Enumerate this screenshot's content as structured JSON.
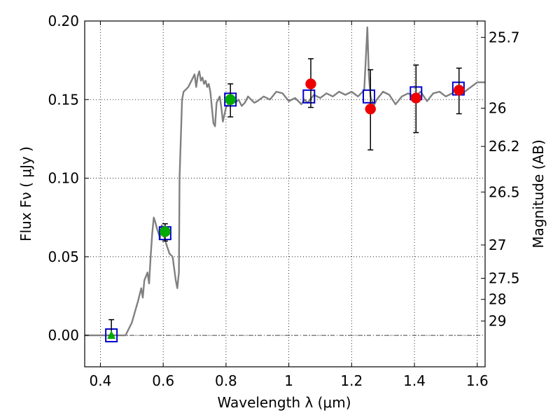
{
  "chart_data": {
    "type": "scatter",
    "title": "",
    "xlabel": "Wavelength  λ (μm)",
    "ylabel": "Flux  Fν  ( μJy )",
    "y2label": "Magnitude (AB)",
    "xlim": [
      0.35,
      1.625
    ],
    "ylim": [
      -0.02,
      0.2
    ],
    "grid": true,
    "x_ticks": [
      0.4,
      0.6,
      0.8,
      1.0,
      1.2,
      1.4,
      1.6
    ],
    "x_tick_labels": [
      "0.4",
      "0.6",
      "0.8",
      "1",
      "1.2",
      "1.4",
      "1.6"
    ],
    "y_ticks": [
      0.0,
      0.05,
      0.1,
      0.15,
      0.2
    ],
    "y_tick_labels": [
      "0.00",
      "0.05",
      "0.10",
      "0.15",
      "0.20"
    ],
    "y2_ticks": [
      {
        "label": "25.7",
        "flux": 0.1896
      },
      {
        "label": "26",
        "flux": 0.1445
      },
      {
        "label": "26.2",
        "flux": 0.1202
      },
      {
        "label": "26.5",
        "flux": 0.0912
      },
      {
        "label": "27",
        "flux": 0.0575
      },
      {
        "label": "27.5",
        "flux": 0.0363
      },
      {
        "label": "28",
        "flux": 0.0229
      },
      {
        "label": "29",
        "flux": 0.0091
      }
    ],
    "series": [
      {
        "kind": "line",
        "color": "#808080",
        "x": [
          0.35,
          0.48,
          0.5,
          0.52,
          0.53,
          0.535,
          0.54,
          0.55,
          0.555,
          0.56,
          0.565,
          0.57,
          0.575,
          0.58,
          0.59,
          0.595,
          0.6,
          0.61,
          0.62,
          0.63,
          0.64,
          0.645,
          0.65,
          0.652,
          0.66,
          0.665,
          0.67,
          0.68,
          0.69,
          0.7,
          0.705,
          0.71,
          0.715,
          0.72,
          0.725,
          0.73,
          0.735,
          0.74,
          0.745,
          0.75,
          0.755,
          0.76,
          0.765,
          0.77,
          0.775,
          0.78,
          0.785,
          0.79,
          0.8,
          0.81,
          0.82,
          0.83,
          0.84,
          0.85,
          0.86,
          0.87,
          0.88,
          0.89,
          0.9,
          0.92,
          0.94,
          0.96,
          0.98,
          1.0,
          1.02,
          1.04,
          1.05,
          1.06,
          1.08,
          1.1,
          1.12,
          1.14,
          1.16,
          1.18,
          1.2,
          1.22,
          1.24,
          1.245,
          1.25,
          1.255,
          1.26,
          1.27,
          1.28,
          1.3,
          1.32,
          1.34,
          1.36,
          1.38,
          1.4,
          1.42,
          1.44,
          1.46,
          1.48,
          1.5,
          1.52,
          1.54,
          1.56,
          1.58,
          1.6,
          1.625
        ],
        "y": [
          0.0,
          0.0,
          0.008,
          0.022,
          0.03,
          0.024,
          0.035,
          0.04,
          0.033,
          0.05,
          0.065,
          0.075,
          0.072,
          0.068,
          0.062,
          0.07,
          0.066,
          0.058,
          0.052,
          0.05,
          0.035,
          0.03,
          0.04,
          0.1,
          0.15,
          0.155,
          0.156,
          0.158,
          0.162,
          0.166,
          0.158,
          0.165,
          0.168,
          0.162,
          0.164,
          0.16,
          0.162,
          0.158,
          0.16,
          0.155,
          0.145,
          0.135,
          0.133,
          0.148,
          0.15,
          0.152,
          0.145,
          0.136,
          0.145,
          0.148,
          0.15,
          0.148,
          0.15,
          0.146,
          0.148,
          0.152,
          0.15,
          0.148,
          0.149,
          0.152,
          0.15,
          0.155,
          0.154,
          0.149,
          0.151,
          0.147,
          0.15,
          0.148,
          0.153,
          0.151,
          0.154,
          0.152,
          0.155,
          0.153,
          0.155,
          0.152,
          0.156,
          0.175,
          0.196,
          0.165,
          0.152,
          0.146,
          0.15,
          0.155,
          0.153,
          0.147,
          0.152,
          0.154,
          0.152,
          0.155,
          0.149,
          0.154,
          0.155,
          0.152,
          0.154,
          0.158,
          0.155,
          0.158,
          0.161,
          0.161
        ]
      },
      {
        "kind": "markers",
        "marker": "open-square",
        "color": "#0000cc",
        "x": [
          0.435,
          0.606,
          0.814,
          1.064,
          1.255,
          1.405,
          1.54
        ],
        "y": [
          0.0,
          0.065,
          0.15,
          0.152,
          0.152,
          0.154,
          0.157
        ]
      },
      {
        "kind": "markers",
        "marker": "circle",
        "color": "#00aa00",
        "x": [
          0.606,
          0.814
        ],
        "y": [
          0.066,
          0.15
        ],
        "yerr_low": [
          0.006,
          0.011
        ],
        "yerr_high": [
          0.005,
          0.01
        ]
      },
      {
        "kind": "markers",
        "marker": "triangle",
        "color": "#00aa00",
        "x": [
          0.435
        ],
        "y": [
          0.0
        ],
        "yerr_low": [
          0.0
        ],
        "yerr_high": [
          0.01
        ]
      },
      {
        "kind": "markers",
        "marker": "circle",
        "color": "#ee0000",
        "x": [
          1.07,
          1.26,
          1.405,
          1.542
        ],
        "y": [
          0.16,
          0.144,
          0.151,
          0.156
        ],
        "yerr_low": [
          0.015,
          0.026,
          0.022,
          0.015
        ],
        "yerr_high": [
          0.016,
          0.025,
          0.021,
          0.014
        ]
      }
    ]
  }
}
